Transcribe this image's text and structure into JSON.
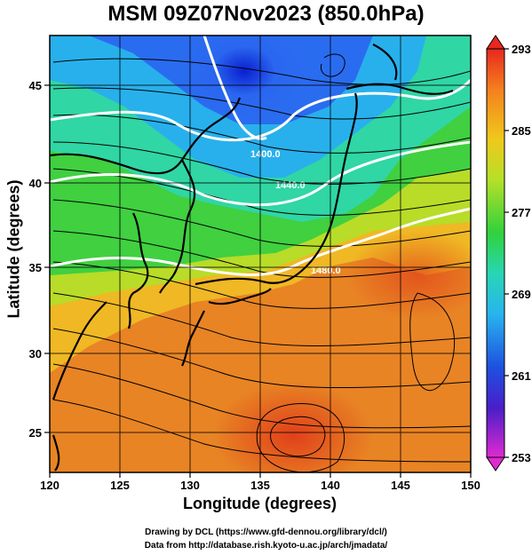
{
  "title": "MSM 09Z07Nov2023 (850.0hPa)",
  "xlabel": "Longitude (degrees)",
  "ylabel": "Latitude  (degrees)",
  "x_ticks": [
    "120",
    "125",
    "130",
    "135",
    "140",
    "145",
    "150"
  ],
  "y_ticks": [
    "25",
    "30",
    "35",
    "40",
    "45"
  ],
  "colorbar_ticks": [
    "293",
    "285",
    "277",
    "269",
    "261",
    "253"
  ],
  "contour_labels": [
    "1400.0",
    "1440.0",
    "1480.0"
  ],
  "footer_line1": "Drawing by DCL (https://www.gfd-dennou.org/library/dcl/)",
  "footer_line2": "Data from http://database.rish.kyoto-u.ac.jp/arch/jmadata/",
  "map": {
    "lon_range": [
      120,
      150
    ],
    "lat_range": [
      22.4,
      47.6
    ],
    "colorbar_range": [
      253,
      293
    ]
  }
}
